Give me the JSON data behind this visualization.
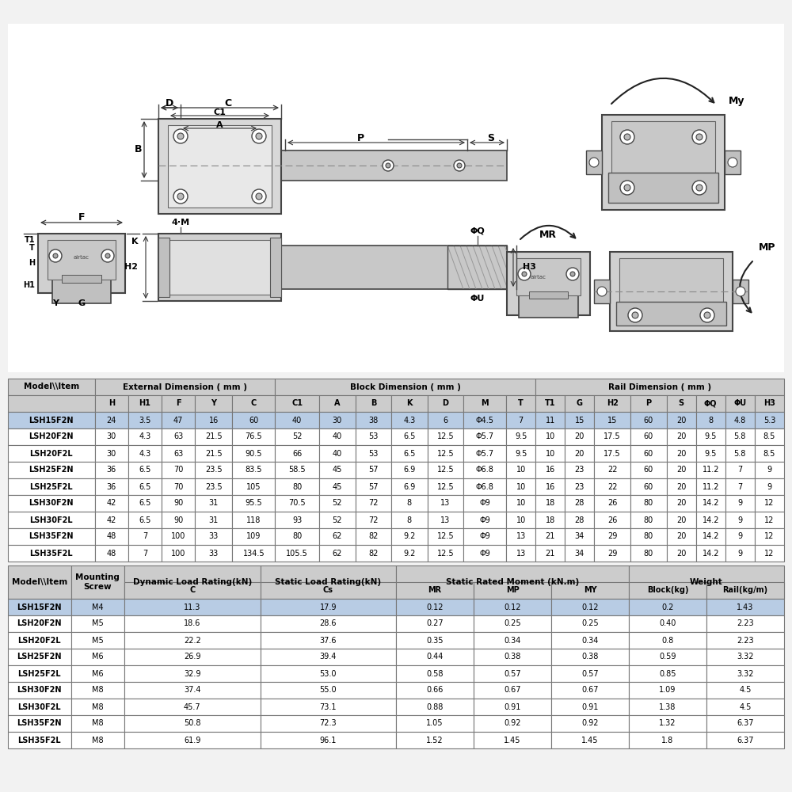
{
  "bg_color": "#f2f2f2",
  "table_bg": "#ffffff",
  "header_bg": "#cccccc",
  "highlight_row_bg": "#b8cce4",
  "alt_row_bg": "#ffffff",
  "border_color": "#777777",
  "header_text_color": "#000000",
  "cell_text_color": "#000000",
  "table1_sub_headers": [
    "",
    "H",
    "H1",
    "F",
    "Y",
    "C",
    "C1",
    "A",
    "B",
    "K",
    "D",
    "M",
    "T",
    "T1",
    "G",
    "H2",
    "P",
    "S",
    "ΦQ",
    "ΦU",
    "H3"
  ],
  "table1_rows": [
    [
      "LSH15F2N",
      "24",
      "3.5",
      "47",
      "16",
      "60",
      "40",
      "30",
      "38",
      "4.3",
      "6",
      "Φ4.5",
      "7",
      "11",
      "15",
      "15",
      "60",
      "20",
      "8",
      "4.8",
      "5.3"
    ],
    [
      "LSH20F2N",
      "30",
      "4.3",
      "63",
      "21.5",
      "76.5",
      "52",
      "40",
      "53",
      "6.5",
      "12.5",
      "Φ5.7",
      "9.5",
      "10",
      "20",
      "17.5",
      "60",
      "20",
      "9.5",
      "5.8",
      "8.5"
    ],
    [
      "LSH20F2L",
      "30",
      "4.3",
      "63",
      "21.5",
      "90.5",
      "66",
      "40",
      "53",
      "6.5",
      "12.5",
      "Φ5.7",
      "9.5",
      "10",
      "20",
      "17.5",
      "60",
      "20",
      "9.5",
      "5.8",
      "8.5"
    ],
    [
      "LSH25F2N",
      "36",
      "6.5",
      "70",
      "23.5",
      "83.5",
      "58.5",
      "45",
      "57",
      "6.9",
      "12.5",
      "Φ6.8",
      "10",
      "16",
      "23",
      "22",
      "60",
      "20",
      "11.2",
      "7",
      "9"
    ],
    [
      "LSH25F2L",
      "36",
      "6.5",
      "70",
      "23.5",
      "105",
      "80",
      "45",
      "57",
      "6.9",
      "12.5",
      "Φ6.8",
      "10",
      "16",
      "23",
      "22",
      "60",
      "20",
      "11.2",
      "7",
      "9"
    ],
    [
      "LSH30F2N",
      "42",
      "6.5",
      "90",
      "31",
      "95.5",
      "70.5",
      "52",
      "72",
      "8",
      "13",
      "Φ9",
      "10",
      "18",
      "28",
      "26",
      "80",
      "20",
      "14.2",
      "9",
      "12"
    ],
    [
      "LSH30F2L",
      "42",
      "6.5",
      "90",
      "31",
      "118",
      "93",
      "52",
      "72",
      "8",
      "13",
      "Φ9",
      "10",
      "18",
      "28",
      "26",
      "80",
      "20",
      "14.2",
      "9",
      "12"
    ],
    [
      "LSH35F2N",
      "48",
      "7",
      "100",
      "33",
      "109",
      "80",
      "62",
      "82",
      "9.2",
      "12.5",
      "Φ9",
      "13",
      "21",
      "34",
      "29",
      "80",
      "20",
      "14.2",
      "9",
      "12"
    ],
    [
      "LSH35F2L",
      "48",
      "7",
      "100",
      "33",
      "134.5",
      "105.5",
      "62",
      "82",
      "9.2",
      "12.5",
      "Φ9",
      "13",
      "21",
      "34",
      "29",
      "80",
      "20",
      "14.2",
      "9",
      "12"
    ]
  ],
  "table1_header_groups": [
    [
      0,
      1,
      "Model\\\\Item"
    ],
    [
      1,
      6,
      "External Dimension ( mm )"
    ],
    [
      6,
      13,
      "Block Dimension ( mm )"
    ],
    [
      13,
      21,
      "Rail Dimension ( mm )"
    ]
  ],
  "table1_col_widths": [
    65,
    25,
    25,
    25,
    28,
    32,
    33,
    27,
    27,
    27,
    27,
    32,
    22,
    22,
    22,
    27,
    27,
    22,
    22,
    22,
    22
  ],
  "table2_rows": [
    [
      "LSH15F2N",
      "M4",
      "11.3",
      "17.9",
      "0.12",
      "0.12",
      "0.12",
      "0.2",
      "1.43"
    ],
    [
      "LSH20F2N",
      "M5",
      "18.6",
      "28.6",
      "0.27",
      "0.25",
      "0.25",
      "0.40",
      "2.23"
    ],
    [
      "LSH20F2L",
      "M5",
      "22.2",
      "37.6",
      "0.35",
      "0.34",
      "0.34",
      "0.8",
      "2.23"
    ],
    [
      "LSH25F2N",
      "M6",
      "26.9",
      "39.4",
      "0.44",
      "0.38",
      "0.38",
      "0.59",
      "3.32"
    ],
    [
      "LSH25F2L",
      "M6",
      "32.9",
      "53.0",
      "0.58",
      "0.57",
      "0.57",
      "0.85",
      "3.32"
    ],
    [
      "LSH30F2N",
      "M8",
      "37.4",
      "55.0",
      "0.66",
      "0.67",
      "0.67",
      "1.09",
      "4.5"
    ],
    [
      "LSH30F2L",
      "M8",
      "45.7",
      "73.1",
      "0.88",
      "0.91",
      "0.91",
      "1.38",
      "4.5"
    ],
    [
      "LSH35F2N",
      "M8",
      "50.8",
      "72.3",
      "1.05",
      "0.92",
      "0.92",
      "1.32",
      "6.37"
    ],
    [
      "LSH35F2L",
      "M8",
      "61.9",
      "96.1",
      "1.52",
      "1.45",
      "1.45",
      "1.8",
      "6.37"
    ]
  ],
  "table2_header_groups": [
    [
      0,
      1,
      "Model\\\\Item"
    ],
    [
      1,
      2,
      "Mounting\nScrew"
    ],
    [
      2,
      3,
      "Dynamic Load Rating(kN)"
    ],
    [
      3,
      4,
      "Static Load Rating(kN)"
    ],
    [
      4,
      7,
      "Static Rated Moment (kN.m)"
    ],
    [
      7,
      9,
      "Weight"
    ]
  ],
  "table2_sub_headers": [
    "",
    "",
    "C",
    "Cs",
    "MR",
    "MP",
    "MY",
    "Block(kg)",
    "Rail(kg/m)"
  ],
  "table2_col_widths": [
    65,
    55,
    140,
    140,
    80,
    80,
    80,
    80,
    80
  ],
  "diagram_bg": "#ffffff"
}
